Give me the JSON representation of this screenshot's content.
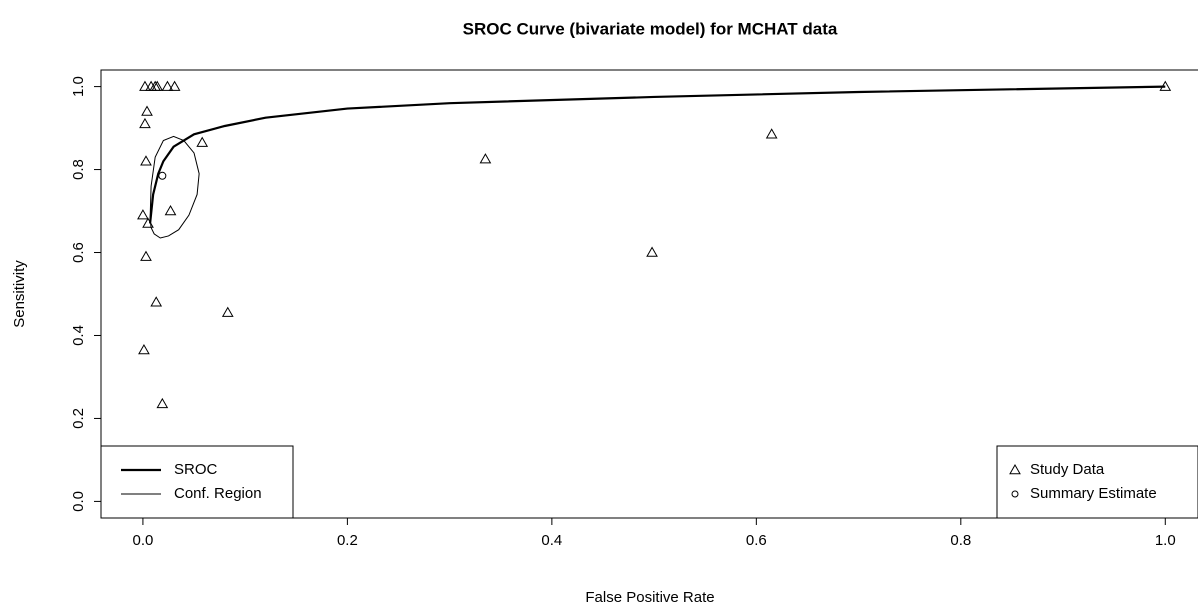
{
  "chart_data": {
    "type": "scatter",
    "title": "SROC Curve (bivariate model) for MCHAT data",
    "x_label": "False Positive Rate",
    "y_label": "Sensitivity",
    "xlim": [
      -0.041,
      1.032
    ],
    "ylim": [
      -0.04,
      1.04
    ],
    "xticks": [
      {
        "value": 0,
        "label": "0.0"
      },
      0.2,
      0.4,
      0.6,
      0.8,
      {
        "value": 1,
        "label": "1.0"
      }
    ],
    "yticks": [
      {
        "value": 0,
        "label": "0.0"
      },
      0.2,
      0.4,
      0.6,
      0.8,
      {
        "value": 1,
        "label": "1.0"
      }
    ],
    "series": [
      {
        "name": "SROC",
        "type": "line",
        "color": "#000000",
        "line_width": 2.2,
        "legend": "bottom-left",
        "x": [
          0.007,
          0.01,
          0.015,
          0.02,
          0.03,
          0.05,
          0.08,
          0.12,
          0.2,
          0.3,
          0.5,
          0.7,
          1.0
        ],
        "values": [
          0.67,
          0.74,
          0.79,
          0.82,
          0.855,
          0.885,
          0.905,
          0.925,
          0.947,
          0.96,
          0.975,
          0.987,
          1.0
        ]
      },
      {
        "name": "Conf. Region",
        "type": "line",
        "color": "#000000",
        "line_width": 1,
        "legend": "bottom-left",
        "x": [
          0.007,
          0.008,
          0.012,
          0.02,
          0.03,
          0.04,
          0.05,
          0.055,
          0.053,
          0.045,
          0.035,
          0.025,
          0.017,
          0.011,
          0.008,
          0.007
        ],
        "values": [
          0.68,
          0.76,
          0.83,
          0.87,
          0.88,
          0.87,
          0.84,
          0.79,
          0.74,
          0.69,
          0.655,
          0.64,
          0.635,
          0.645,
          0.66,
          0.68
        ]
      },
      {
        "name": "Study Data",
        "type": "scatter",
        "marker": "triangle",
        "color": "#000000",
        "legend": "bottom-right",
        "x": [
          0.002,
          0.008,
          0.012,
          0.014,
          0.024,
          0.031,
          0.004,
          0.002,
          0.003,
          0.058,
          0.0,
          0.005,
          0.027,
          0.003,
          0.013,
          0.083,
          0.001,
          0.019,
          0.335,
          0.498,
          0.615,
          1.0
        ],
        "values": [
          1.0,
          1.0,
          1.0,
          1.0,
          1.0,
          1.0,
          0.94,
          0.91,
          0.82,
          0.865,
          0.69,
          0.67,
          0.7,
          0.59,
          0.48,
          0.455,
          0.365,
          0.235,
          0.825,
          0.6,
          0.885,
          1.0
        ]
      },
      {
        "name": "Summary Estimate",
        "type": "scatter",
        "marker": "circle",
        "color": "#000000",
        "legend": "bottom-right",
        "x": [
          0.019
        ],
        "values": [
          0.785
        ]
      }
    ]
  }
}
